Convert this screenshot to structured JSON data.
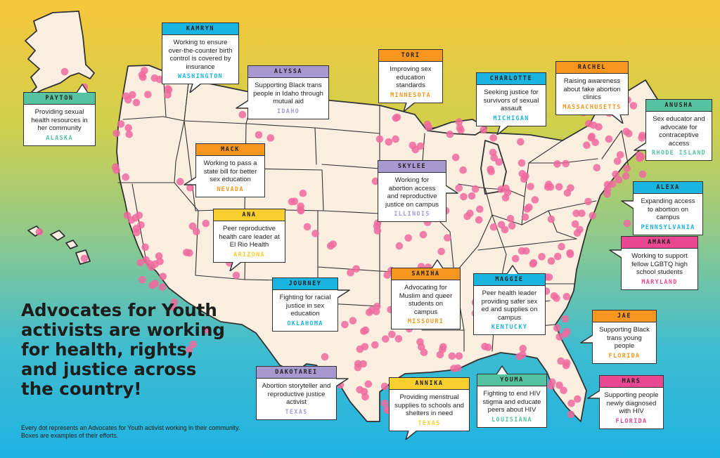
{
  "headline": "Advocates for Youth activists are working for health, rights, and justice across the country!",
  "subtext": "Every dot represents an Advocates for Youth activist working in their community. Boxes are examples of their efforts.",
  "colors": {
    "dot": "#ee6a9e",
    "land": "#faeee1",
    "border": "#333333",
    "orange": "#f7961e",
    "purple": "#a699cf",
    "cyan": "#1ab4e0",
    "green": "#56c3a0",
    "yellow": "#f8cf2c",
    "pink": "#e9478f"
  },
  "activists": [
    {
      "name": "KAMRYN",
      "description": "Working to ensure over-the-counter birth control is covered by insurance",
      "state": "WASHINGTON",
      "theme": "cyan"
    },
    {
      "name": "ALYSSA",
      "description": "Supporting Black trans people in Idaho through mutual aid",
      "state": "IDAHO",
      "theme": "purple"
    },
    {
      "name": "TORI",
      "description": "Improving sex education standards",
      "state": "MINNESOTA",
      "theme": "orange"
    },
    {
      "name": "CHARLOTTE",
      "description": "Seeking justice for survivors of sexual assault",
      "state": "MICHIGAN",
      "theme": "cyan"
    },
    {
      "name": "RACHEL",
      "description": "Raising awareness about fake abortion clinics",
      "state": "MASSACHUSETTS",
      "theme": "orange"
    },
    {
      "name": "PAYTON",
      "description": "Providing sexual health resources in her community",
      "state": "ALASKA",
      "theme": "green"
    },
    {
      "name": "ANUSHA",
      "description": "Sex educator and advocate for contraceptive access",
      "state": "RHODE ISLAND",
      "theme": "green"
    },
    {
      "name": "MACK",
      "description": "Working to pass a state bill for better sex education",
      "state": "NEVADA",
      "theme": "orange"
    },
    {
      "name": "SKYLEE",
      "description": "Working for abortion access and reproductive justice on campus",
      "state": "ILLINOIS",
      "theme": "purple"
    },
    {
      "name": "ALEXA",
      "description": "Expanding access to abortion on campus",
      "state": "PENNSYLVANIA",
      "theme": "cyan"
    },
    {
      "name": "ANA",
      "description": "Peer reproductive health care leader at El Rio Health",
      "state": "ARIZONA",
      "theme": "yellow"
    },
    {
      "name": "AMAKA",
      "description": "Working to support fellow LGBTQ high school students",
      "state": "MARYLAND",
      "theme": "pink"
    },
    {
      "name": "SAMIHA",
      "description": "Advocating for Muslim and queer students on campus",
      "state": "MISSOURI",
      "theme": "orange"
    },
    {
      "name": "MAGGIE",
      "description": "Peer health leader providing safer sex ed and supplies on campus",
      "state": "KENTUCKY",
      "theme": "cyan"
    },
    {
      "name": "JOURNEY",
      "description": "Fighting for racial justice in sex education",
      "state": "OKLAHOMA",
      "theme": "cyan"
    },
    {
      "name": "JAE",
      "description": "Supporting Black trans young people",
      "state": "FLORIDA",
      "theme": "orange"
    },
    {
      "name": "DAKOTAREI",
      "description": "Abortion storyteller and reproductive justice activist",
      "state": "TEXAS",
      "theme": "purple"
    },
    {
      "name": "ANNIKA",
      "description": "Providing menstrual supplies to schools and shelters in need",
      "state": "TEXAS",
      "theme": "yellow"
    },
    {
      "name": "YOUMA",
      "description": "Fighting to end HIV stigma and educate peers about HIV",
      "state": "LOUISIANA",
      "theme": "green"
    },
    {
      "name": "MARS",
      "description": "Supporting people newly diagnosed with HIV",
      "state": "FLORIDA",
      "theme": "pink"
    }
  ]
}
